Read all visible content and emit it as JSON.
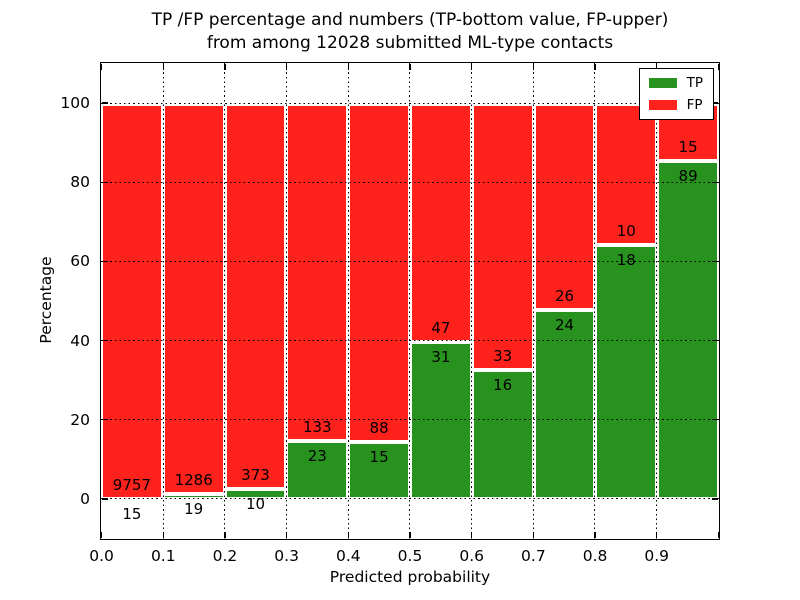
{
  "title_line1": "TP /FP percentage and numbers (TP-bottom value, FP-upper)",
  "title_line2": "from among 12028 submitted ML-type contacts",
  "chart_data": {
    "type": "bar",
    "stacked": true,
    "note": "each bin normalized to 100%; TP segment on bottom, FP on top; numeric labels show raw counts (TP below boundary, FP above)",
    "title": "TP /FP percentage and numbers (TP-bottom value, FP-upper) from among 12028 submitted ML-type contacts",
    "xlabel": "Predicted probability",
    "ylabel": "Percentage",
    "xlim": [
      0.0,
      1.0
    ],
    "ylim": [
      -10,
      110
    ],
    "grid": "dotted",
    "legend_position": "upper right",
    "bin_edges": [
      0.0,
      0.1,
      0.2,
      0.3,
      0.4,
      0.5,
      0.6,
      0.7,
      0.8,
      0.9,
      1.0
    ],
    "x_tick_labels": [
      "0.0",
      "0.1",
      "0.2",
      "0.3",
      "0.4",
      "0.5",
      "0.6",
      "0.7",
      "0.8",
      "0.9"
    ],
    "y_ticks": [
      0,
      20,
      40,
      60,
      80,
      100
    ],
    "y_tick_labels": [
      "0",
      "20",
      "40",
      "60",
      "80",
      "100"
    ],
    "series": [
      {
        "name": "TP",
        "color": "#28921f",
        "counts": [
          15,
          19,
          10,
          23,
          15,
          31,
          16,
          24,
          18,
          89
        ]
      },
      {
        "name": "FP",
        "color": "#ff211c",
        "counts": [
          9757,
          1286,
          373,
          133,
          88,
          47,
          33,
          26,
          10,
          15
        ]
      }
    ],
    "tp_percent_of_bin": [
      0.15,
      1.46,
      2.61,
      14.74,
      14.56,
      39.74,
      32.65,
      48.0,
      64.29,
      85.58
    ],
    "legend": {
      "entries": [
        {
          "label": "TP"
        },
        {
          "label": "FP"
        }
      ]
    }
  }
}
